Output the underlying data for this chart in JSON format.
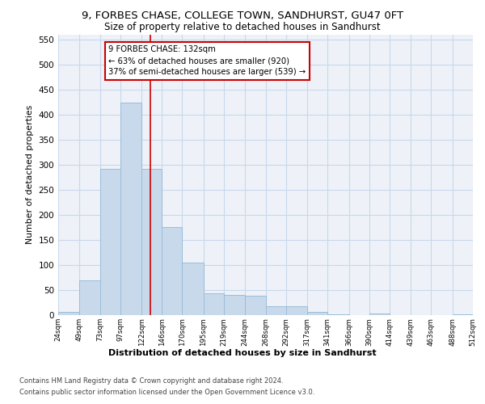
{
  "title_line1": "9, FORBES CHASE, COLLEGE TOWN, SANDHURST, GU47 0FT",
  "title_line2": "Size of property relative to detached houses in Sandhurst",
  "xlabel": "Distribution of detached houses by size in Sandhurst",
  "ylabel": "Number of detached properties",
  "bar_color": "#c9d9ec",
  "bar_edge_color": "#9abdd8",
  "grid_color": "#c8d8eb",
  "bg_color": "#eef2f8",
  "vline_x": 132,
  "vline_color": "#cc0000",
  "annotation_box_text": "9 FORBES CHASE: 132sqm\n← 63% of detached houses are smaller (920)\n37% of semi-detached houses are larger (539) →",
  "annotation_box_color": "#cc0000",
  "footer_line1": "Contains HM Land Registry data © Crown copyright and database right 2024.",
  "footer_line2": "Contains public sector information licensed under the Open Government Licence v3.0.",
  "bin_edges": [
    24,
    49,
    73,
    97,
    122,
    146,
    170,
    195,
    219,
    244,
    268,
    292,
    317,
    341,
    366,
    390,
    414,
    439,
    463,
    488,
    512
  ],
  "bar_heights": [
    7,
    70,
    292,
    424,
    292,
    175,
    104,
    44,
    41,
    39,
    17,
    17,
    7,
    2,
    0,
    3,
    0,
    0,
    0,
    2
  ],
  "ylim": [
    0,
    560
  ],
  "yticks": [
    0,
    50,
    100,
    150,
    200,
    250,
    300,
    350,
    400,
    450,
    500,
    550
  ]
}
